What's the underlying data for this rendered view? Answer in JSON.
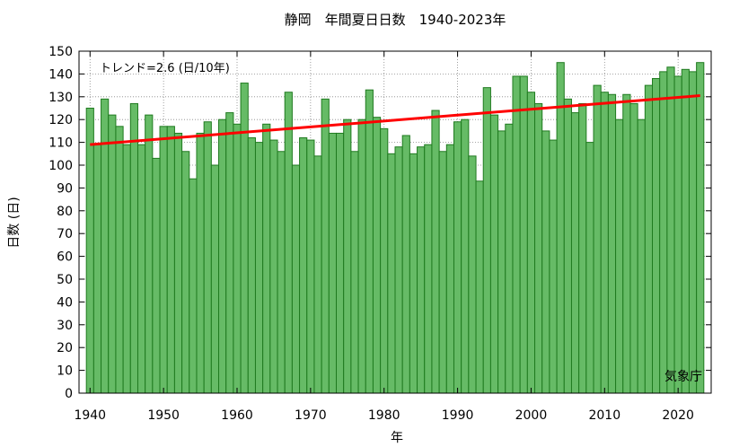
{
  "chart_data": {
    "type": "bar",
    "title": "静岡　年間夏日日数　1940-2023年",
    "xlabel": "年",
    "ylabel": "日数 (日)",
    "trend_label": "トレンド=2.6 (日/10年)",
    "source": "気象庁",
    "xlim": [
      1938.5,
      2024.5
    ],
    "ylim": [
      0,
      150
    ],
    "yticks": [
      0,
      10,
      20,
      30,
      40,
      50,
      60,
      70,
      80,
      90,
      100,
      110,
      120,
      130,
      140,
      150
    ],
    "xticks": [
      1940,
      1950,
      1960,
      1970,
      1980,
      1990,
      2000,
      2010,
      2020
    ],
    "grid": true,
    "bar_color": "#66bb66",
    "bar_edge_color": "#1f7a1f",
    "trend_color": "#ff0000",
    "x": [
      1940,
      1941,
      1942,
      1943,
      1944,
      1945,
      1946,
      1947,
      1948,
      1949,
      1950,
      1951,
      1952,
      1953,
      1954,
      1955,
      1956,
      1957,
      1958,
      1959,
      1960,
      1961,
      1962,
      1963,
      1964,
      1965,
      1966,
      1967,
      1968,
      1969,
      1970,
      1971,
      1972,
      1973,
      1974,
      1975,
      1976,
      1977,
      1978,
      1979,
      1980,
      1981,
      1982,
      1983,
      1984,
      1985,
      1986,
      1987,
      1988,
      1989,
      1990,
      1991,
      1992,
      1993,
      1994,
      1995,
      1996,
      1997,
      1998,
      1999,
      2000,
      2001,
      2002,
      2003,
      2004,
      2005,
      2006,
      2007,
      2008,
      2009,
      2010,
      2011,
      2012,
      2013,
      2014,
      2015,
      2016,
      2017,
      2018,
      2019,
      2020,
      2021,
      2022,
      2023
    ],
    "values": [
      125,
      109,
      129,
      122,
      117,
      109,
      127,
      109,
      122,
      103,
      117,
      117,
      114,
      106,
      94,
      114,
      119,
      100,
      120,
      123,
      118,
      136,
      112,
      110,
      118,
      111,
      106,
      132,
      100,
      112,
      111,
      104,
      129,
      114,
      114,
      120,
      106,
      120,
      133,
      121,
      116,
      105,
      108,
      113,
      105,
      108,
      109,
      124,
      106,
      109,
      119,
      120,
      104,
      93,
      134,
      122,
      115,
      118,
      139,
      139,
      132,
      127,
      115,
      111,
      145,
      129,
      123,
      127,
      110,
      135,
      132,
      131,
      120,
      131,
      127,
      120,
      135,
      138,
      141,
      143,
      139,
      142,
      141,
      145
    ],
    "trend": {
      "x": [
        1940,
        2023
      ],
      "y": [
        109,
        130.5
      ]
    }
  }
}
